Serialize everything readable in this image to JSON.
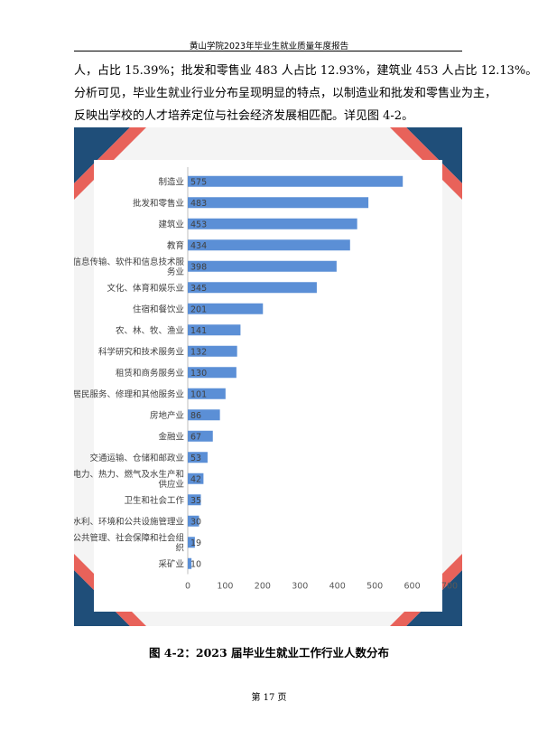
{
  "header": {
    "title": "黄山学院2023年毕业生就业质量年度报告"
  },
  "body_text": [
    "人，占比 15.39%；批发和零售业 483 人占比 12.93%，建筑业 453 人占比 12.13%。",
    "分析可见，毕业生就业行业分布呈现明显的特点，以制造业和批发和零售业为主，",
    "反映出学校的人才培养定位与社会经济发展相匹配。详见图 4-2。"
  ],
  "caption": "图 4-2：2023 届毕业生就业工作行业人数分布",
  "footer": {
    "page": "第 17 页"
  },
  "colors": {
    "bar": "#5b8fd6",
    "frame": "#f4f4f4",
    "corner_blue": "#1f4e79",
    "corner_red": "#e8625a",
    "corner_orange": "#f2a57a"
  },
  "chart_data": {
    "type": "bar",
    "orientation": "horizontal",
    "categories": [
      [
        "制造业"
      ],
      [
        "批发和零售业"
      ],
      [
        "建筑业"
      ],
      [
        "教育"
      ],
      [
        "信息传输、软件和信息技术服",
        "务业"
      ],
      [
        "文化、体育和娱乐业"
      ],
      [
        "住宿和餐饮业"
      ],
      [
        "农、林、牧、渔业"
      ],
      [
        "科学研究和技术服务业"
      ],
      [
        "租赁和商务服务业"
      ],
      [
        "居民服务、修理和其他服务业"
      ],
      [
        "房地产业"
      ],
      [
        "金融业"
      ],
      [
        "交通运输、仓储和邮政业"
      ],
      [
        "电力、热力、燃气及水生产和",
        "供应业"
      ],
      [
        "卫生和社会工作"
      ],
      [
        "水利、环境和公共设施管理业"
      ],
      [
        "公共管理、社会保障和社会组",
        "织"
      ],
      [
        "采矿业"
      ]
    ],
    "values": [
      575,
      483,
      453,
      434,
      398,
      345,
      201,
      141,
      132,
      130,
      101,
      86,
      67,
      53,
      42,
      35,
      30,
      19,
      10
    ],
    "xticks": [
      "0",
      "100",
      "200",
      "300",
      "400",
      "500",
      "600",
      "700"
    ],
    "xlim": [
      0,
      700
    ],
    "grid": false,
    "data_labels": true
  }
}
